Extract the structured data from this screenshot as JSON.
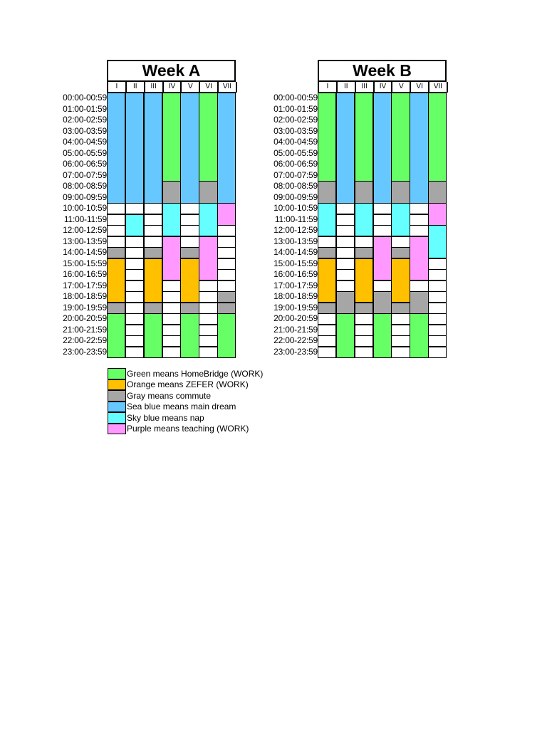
{
  "colors": {
    "green": "#66ff66",
    "orange": "#ffc000",
    "gray": "#a6a6a6",
    "seablue": "#66c8ff",
    "skyblue": "#66ffff",
    "purple": "#ff99ff"
  },
  "days": [
    "I",
    "II",
    "III",
    "IV",
    "V",
    "VI",
    "VII"
  ],
  "hours": [
    "00:00-00:59",
    "01:00-01:59",
    "02:00-02:59",
    "03:00-03:59",
    "04:00-04:59",
    "05:00-05:59",
    "06:00-06:59",
    "07:00-07:59",
    "08:00-08:59",
    "09:00-09:59",
    "10:00-10:59",
    "11:00-11:59",
    "12:00-12:59",
    "13:00-13:59",
    "14:00-14:59",
    "15:00-15:59",
    "16:00-16:59",
    "17:00-17:59",
    "18:00-18:59",
    "19:00-19:59",
    "20:00-20:59",
    "21:00-21:59",
    "22:00-22:59",
    "23:00-23:59"
  ],
  "weeks": [
    {
      "title": "Week A",
      "schedule": [
        [
          {
            "start": 0,
            "end": 10,
            "cat": "seablue"
          },
          {
            "start": 14,
            "end": 15,
            "cat": "gray"
          },
          {
            "start": 15,
            "end": 19,
            "cat": "orange"
          },
          {
            "start": 19,
            "end": 20,
            "cat": "gray"
          },
          {
            "start": 20,
            "end": 24,
            "cat": "green"
          }
        ],
        [
          {
            "start": 0,
            "end": 10,
            "cat": "seablue"
          },
          {
            "start": 11,
            "end": 13,
            "cat": "skyblue"
          }
        ],
        [
          {
            "start": 0,
            "end": 10,
            "cat": "seablue"
          },
          {
            "start": 14,
            "end": 15,
            "cat": "gray"
          },
          {
            "start": 15,
            "end": 19,
            "cat": "orange"
          },
          {
            "start": 19,
            "end": 20,
            "cat": "gray"
          },
          {
            "start": 20,
            "end": 24,
            "cat": "green"
          }
        ],
        [
          {
            "start": 0,
            "end": 8,
            "cat": "green"
          },
          {
            "start": 8,
            "end": 10,
            "cat": "gray"
          },
          {
            "start": 10,
            "end": 13,
            "cat": "skyblue"
          },
          {
            "start": 13,
            "end": 17,
            "cat": "purple"
          }
        ],
        [
          {
            "start": 0,
            "end": 10,
            "cat": "seablue"
          },
          {
            "start": 14,
            "end": 15,
            "cat": "gray"
          },
          {
            "start": 15,
            "end": 19,
            "cat": "orange"
          },
          {
            "start": 19,
            "end": 20,
            "cat": "gray"
          },
          {
            "start": 20,
            "end": 24,
            "cat": "green"
          }
        ],
        [
          {
            "start": 0,
            "end": 8,
            "cat": "green"
          },
          {
            "start": 8,
            "end": 10,
            "cat": "gray"
          },
          {
            "start": 10,
            "end": 13,
            "cat": "skyblue"
          },
          {
            "start": 13,
            "end": 17,
            "cat": "purple"
          }
        ],
        [
          {
            "start": 0,
            "end": 10,
            "cat": "seablue"
          },
          {
            "start": 10,
            "end": 12,
            "cat": "purple"
          },
          {
            "start": 18,
            "end": 19,
            "cat": "gray"
          },
          {
            "start": 19,
            "end": 20,
            "cat": "gray"
          },
          {
            "start": 20,
            "end": 24,
            "cat": "green"
          }
        ]
      ]
    },
    {
      "title": "Week B",
      "schedule": [
        [
          {
            "start": 0,
            "end": 8,
            "cat": "green"
          },
          {
            "start": 8,
            "end": 10,
            "cat": "gray"
          },
          {
            "start": 10,
            "end": 13,
            "cat": "skyblue"
          },
          {
            "start": 14,
            "end": 15,
            "cat": "gray"
          },
          {
            "start": 15,
            "end": 19,
            "cat": "orange"
          },
          {
            "start": 19,
            "end": 20,
            "cat": "gray"
          }
        ],
        [
          {
            "start": 0,
            "end": 10,
            "cat": "seablue"
          },
          {
            "start": 18,
            "end": 20,
            "cat": "gray"
          },
          {
            "start": 20,
            "end": 24,
            "cat": "green"
          }
        ],
        [
          {
            "start": 0,
            "end": 8,
            "cat": "green"
          },
          {
            "start": 8,
            "end": 10,
            "cat": "gray"
          },
          {
            "start": 10,
            "end": 13,
            "cat": "skyblue"
          },
          {
            "start": 14,
            "end": 15,
            "cat": "gray"
          },
          {
            "start": 15,
            "end": 19,
            "cat": "orange"
          },
          {
            "start": 19,
            "end": 20,
            "cat": "gray"
          }
        ],
        [
          {
            "start": 0,
            "end": 10,
            "cat": "seablue"
          },
          {
            "start": 13,
            "end": 17,
            "cat": "purple"
          },
          {
            "start": 18,
            "end": 20,
            "cat": "gray"
          },
          {
            "start": 20,
            "end": 24,
            "cat": "green"
          }
        ],
        [
          {
            "start": 0,
            "end": 8,
            "cat": "green"
          },
          {
            "start": 8,
            "end": 10,
            "cat": "gray"
          },
          {
            "start": 10,
            "end": 13,
            "cat": "skyblue"
          },
          {
            "start": 14,
            "end": 15,
            "cat": "gray"
          },
          {
            "start": 15,
            "end": 19,
            "cat": "orange"
          },
          {
            "start": 19,
            "end": 20,
            "cat": "gray"
          }
        ],
        [
          {
            "start": 0,
            "end": 10,
            "cat": "seablue"
          },
          {
            "start": 13,
            "end": 17,
            "cat": "purple"
          },
          {
            "start": 18,
            "end": 20,
            "cat": "gray"
          },
          {
            "start": 20,
            "end": 24,
            "cat": "green"
          }
        ],
        [
          {
            "start": 0,
            "end": 8,
            "cat": "green"
          },
          {
            "start": 8,
            "end": 10,
            "cat": "gray"
          },
          {
            "start": 10,
            "end": 12,
            "cat": "purple"
          },
          {
            "start": 12,
            "end": 15,
            "cat": "skyblue"
          }
        ]
      ]
    }
  ],
  "legend": [
    {
      "cat": "green",
      "text": "Green means HomeBridge (WORK)"
    },
    {
      "cat": "orange",
      "text": "Orange means ZEFER (WORK)"
    },
    {
      "cat": "gray",
      "text": "Gray means commute"
    },
    {
      "cat": "seablue",
      "text": "Sea blue means main dream"
    },
    {
      "cat": "skyblue",
      "text": "Sky blue means nap"
    },
    {
      "cat": "purple",
      "text": "Purple means teaching (WORK)"
    }
  ]
}
